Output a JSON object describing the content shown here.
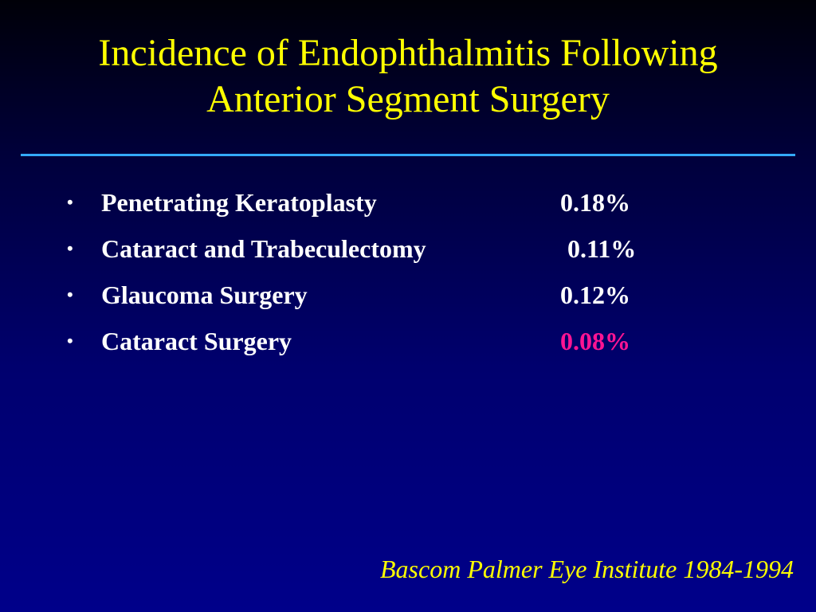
{
  "slide": {
    "title_line1": "Incidence of Endophthalmitis Following",
    "title_line2": "Anterior Segment Surgery",
    "items": [
      {
        "label": "Penetrating Keratoplasty",
        "value": "0.18%"
      },
      {
        "label": "Cataract and Trabeculectomy",
        "value": "0.11%"
      },
      {
        "label": "Glaucoma Surgery",
        "value": "0.12%"
      },
      {
        "label": "Cataract Surgery",
        "value": "0.08%"
      }
    ],
    "source": "Bascom Palmer Eye Institute 1984-1994",
    "colors": {
      "title": "#ffff00",
      "text": "#ffffff",
      "rule": "#33aaff",
      "highlight": "#ff1493",
      "background_top": "#000008",
      "background_bottom": "#00008a"
    }
  }
}
